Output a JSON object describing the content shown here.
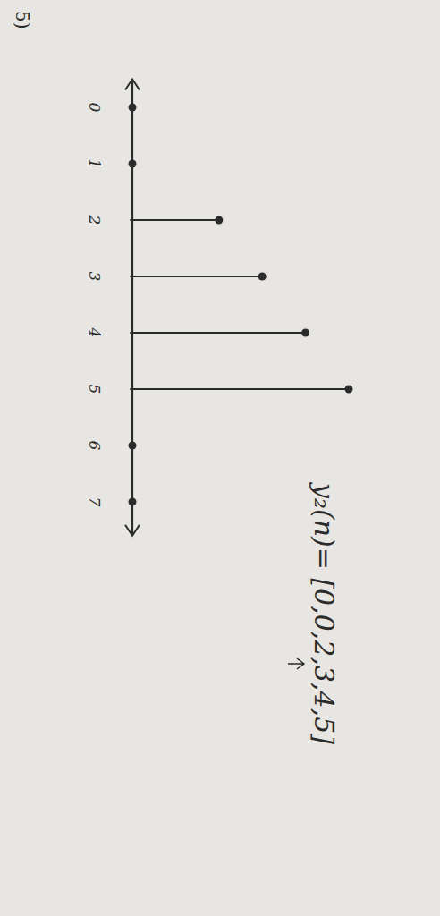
{
  "chart_data": {
    "type": "stem",
    "title": "y₂(n)= [0,0,2,3,4,5]",
    "annotation": "5)",
    "x": [
      0,
      1,
      2,
      3,
      4,
      5,
      6,
      7
    ],
    "values": [
      0,
      0,
      2,
      3,
      4,
      5,
      0,
      0
    ],
    "xlim": [
      -0.5,
      7.6
    ],
    "xticks": [
      0,
      1,
      2,
      3,
      4,
      5,
      6,
      7
    ],
    "ylim": [
      0,
      5
    ],
    "yticks": [],
    "tick_labels": "x",
    "color": "#2b2b2b",
    "marker": "dot"
  }
}
